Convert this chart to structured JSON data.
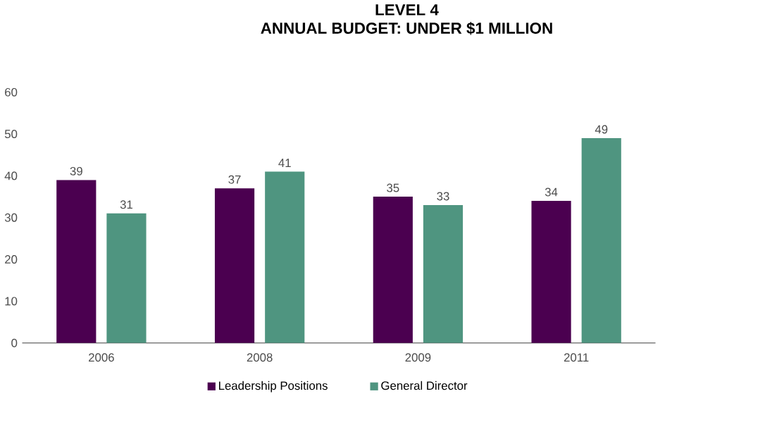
{
  "chart_data": {
    "type": "bar",
    "title": "LEVEL 4",
    "subtitle": "ANNUAL BUDGET: UNDER $1 MILLION",
    "categories": [
      "2006",
      "2008",
      "2009",
      "2011"
    ],
    "series": [
      {
        "name": "Leadership Positions",
        "color": "#4b0050",
        "values": [
          39,
          37,
          35,
          34
        ]
      },
      {
        "name": "General Director",
        "color": "#4f9580",
        "values": [
          31,
          41,
          33,
          49
        ]
      }
    ],
    "ylim": [
      0,
      60
    ],
    "yticks": [
      0,
      10,
      20,
      30,
      40,
      50,
      60
    ],
    "data_labels": true,
    "legend": "bottom"
  }
}
